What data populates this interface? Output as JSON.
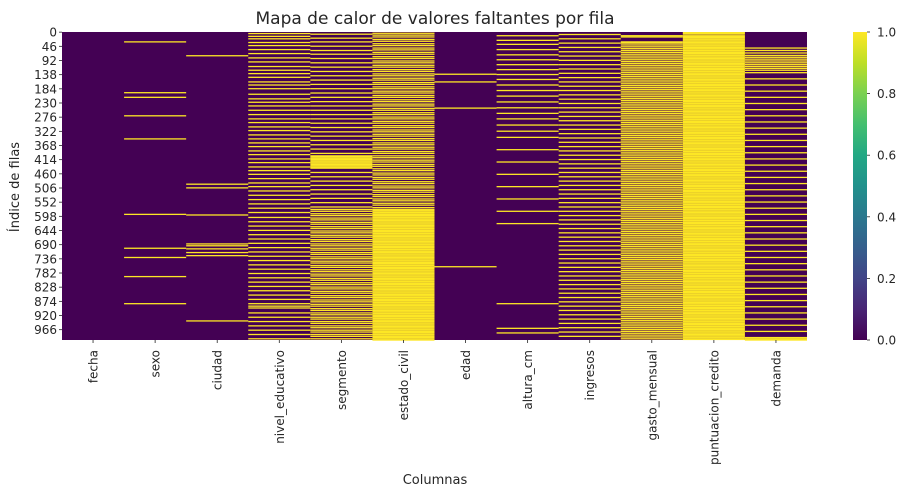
{
  "chart_data": {
    "type": "heatmap",
    "title": "Mapa de calor de valores faltantes por fila",
    "xlabel": "Columnas",
    "ylabel": "Índice de filas",
    "columns": [
      "fecha",
      "sexo",
      "ciudad",
      "nivel_educativo",
      "segmento",
      "estado_civil",
      "edad",
      "altura_cm",
      "ingresos",
      "gasto_mensual",
      "puntuacion_credito",
      "demanda"
    ],
    "row_tick_labels": [
      "0",
      "46",
      "92",
      "138",
      "184",
      "230",
      "276",
      "322",
      "368",
      "414",
      "460",
      "506",
      "552",
      "598",
      "644",
      "690",
      "736",
      "782",
      "828",
      "874",
      "920",
      "966"
    ],
    "n_rows": 1000,
    "values_description": "1 = missing value, 0 = present",
    "missing_rows": {
      "fecha": [],
      "sexo": [
        30,
        195,
        210,
        270,
        345,
        590,
        700,
        730,
        792,
        880
      ],
      "ciudad": [
        75,
        492,
        504,
        592,
        686,
        692,
        702,
        714,
        724,
        936
      ],
      "nivel_educativo": [
        3,
        12,
        20,
        32,
        42,
        55,
        68,
        82,
        95,
        110,
        122,
        133,
        145,
        160,
        170,
        182,
        200,
        215,
        226,
        238,
        252,
        266,
        280,
        292,
        306,
        318,
        332,
        345,
        358,
        370,
        384,
        396,
        410,
        422,
        436,
        448,
        460,
        474,
        488,
        500,
        514,
        528,
        542,
        556,
        570,
        584,
        600,
        614,
        628,
        642,
        656,
        670,
        684,
        698,
        712,
        726,
        740,
        754,
        768,
        782,
        796,
        810,
        824,
        838,
        852,
        866,
        880,
        888,
        894,
        910,
        924,
        938,
        952,
        966,
        980,
        994
      ],
      "segmento": [
        5,
        18,
        30,
        44,
        58,
        70,
        84,
        98,
        112,
        126,
        140,
        154,
        168,
        182,
        196,
        210,
        224,
        238,
        252,
        266,
        280,
        294,
        308,
        322,
        336,
        350,
        364,
        378,
        392,
        400,
        404,
        408,
        412,
        416,
        420,
        424,
        428,
        432,
        436,
        440,
        454,
        468,
        482,
        496,
        510,
        524,
        538,
        552,
        566,
        574,
        580,
        588,
        594,
        602,
        608,
        616,
        622,
        630,
        636,
        644,
        650,
        658,
        664,
        672,
        678,
        686,
        692,
        700,
        706,
        714,
        720,
        728,
        734,
        742,
        748,
        756,
        762,
        770,
        776,
        784,
        790,
        798,
        804,
        812,
        818,
        826,
        832,
        840,
        846,
        854,
        860,
        868,
        874,
        882,
        888,
        896,
        902,
        910,
        916,
        924,
        930,
        938,
        944,
        952,
        958,
        966,
        972,
        980,
        986,
        994
      ],
      "estado_civil": [
        2,
        8,
        14,
        22,
        28,
        36,
        42,
        50,
        56,
        64,
        70,
        78,
        84,
        92,
        98,
        106,
        112,
        120,
        126,
        134,
        140,
        148,
        154,
        162,
        168,
        176,
        182,
        190,
        196,
        204,
        210,
        218,
        224,
        232,
        238,
        246,
        252,
        260,
        266,
        274,
        280,
        288,
        294,
        302,
        308,
        316,
        322,
        330,
        336,
        344,
        350,
        358,
        364,
        372,
        378,
        386,
        392,
        400,
        406,
        414,
        420,
        428,
        434,
        442,
        448,
        456,
        462,
        470,
        476,
        484,
        490,
        498,
        504,
        512,
        518,
        526,
        532,
        540,
        546,
        554,
        560,
        568,
        574,
        578,
        582,
        586,
        590,
        594,
        598,
        602,
        606,
        610,
        614,
        618,
        622,
        626,
        630,
        634,
        638,
        642,
        646,
        650,
        654,
        658,
        662,
        666,
        670,
        674,
        678,
        682,
        686,
        690,
        694,
        698,
        702,
        706,
        710,
        714,
        718,
        722,
        726,
        730,
        734,
        738,
        742,
        746,
        750,
        754,
        758,
        762,
        766,
        770,
        774,
        778,
        782,
        786,
        790,
        794,
        798,
        802,
        806,
        810,
        814,
        818,
        822,
        826,
        830,
        834,
        838,
        842,
        846,
        850,
        854,
        858,
        862,
        866,
        870,
        874,
        878,
        882,
        886,
        890,
        894,
        898,
        902,
        906,
        910,
        914,
        918,
        922,
        926,
        930,
        934,
        938,
        942,
        946,
        950,
        954,
        958,
        962,
        966,
        970,
        974,
        978,
        982,
        986,
        990,
        994,
        998
      ],
      "edad": [
        135,
        160,
        245,
        760
      ],
      "altura_cm": [
        10,
        25,
        38,
        55,
        72,
        88,
        104,
        120,
        136,
        152,
        170,
        188,
        206,
        225,
        244,
        262,
        280,
        300,
        320,
        340,
        380,
        420,
        460,
        500,
        540,
        580,
        620,
        880,
        960,
        975
      ],
      "ingresos": [
        6,
        20,
        34,
        48,
        62,
        76,
        90,
        104,
        118,
        132,
        146,
        160,
        174,
        188,
        202,
        216,
        230,
        244,
        258,
        272,
        286,
        300,
        314,
        328,
        342,
        356,
        370,
        384,
        398,
        412,
        426,
        440,
        454,
        468,
        482,
        496,
        510,
        524,
        538,
        552,
        566,
        580,
        594,
        608,
        622,
        636,
        650,
        664,
        678,
        692,
        706,
        720,
        734,
        748,
        762,
        776,
        790,
        804,
        818,
        832,
        846,
        860,
        874,
        888,
        902,
        916,
        930,
        944,
        958,
        972,
        986
      ],
      "gasto_mensual": [
        10,
        14,
        30,
        34,
        40,
        46,
        52,
        58,
        64,
        70,
        76,
        82,
        88,
        94,
        100,
        106,
        112,
        118,
        124,
        130,
        136,
        142,
        148,
        154,
        160,
        166,
        172,
        178,
        184,
        190,
        196,
        202,
        208,
        214,
        220,
        226,
        232,
        238,
        244,
        250,
        256,
        262,
        268,
        274,
        280,
        286,
        292,
        298,
        304,
        310,
        316,
        322,
        328,
        334,
        340,
        346,
        352,
        358,
        364,
        370,
        376,
        382,
        388,
        394,
        400,
        406,
        412,
        418,
        424,
        430,
        436,
        442,
        448,
        454,
        460,
        466,
        472,
        478,
        484,
        490,
        496,
        502,
        508,
        514,
        520,
        526,
        532,
        538,
        544,
        550,
        556,
        562,
        568,
        574,
        580,
        586,
        592,
        598,
        604,
        610,
        616,
        622,
        628,
        634,
        640,
        646,
        652,
        658,
        664,
        670,
        676,
        682,
        688,
        694,
        700,
        706,
        712,
        718,
        724,
        730,
        736,
        742,
        748,
        754,
        760,
        766,
        772,
        778,
        784,
        790,
        796,
        802,
        808,
        814,
        820,
        826,
        832,
        838,
        844,
        850,
        856,
        862,
        868,
        874,
        880,
        886,
        892,
        898,
        904,
        910,
        916,
        922,
        928,
        934,
        940,
        946,
        952,
        958,
        964,
        970,
        976,
        982,
        988,
        994
      ],
      "puntuacion_credito": [
        0,
        3,
        8,
        12,
        16,
        20,
        24,
        28,
        32,
        36,
        40,
        44,
        48,
        52,
        56,
        60,
        64,
        68,
        72,
        76,
        80,
        84,
        88,
        92,
        96,
        100,
        104,
        108,
        112,
        116,
        120,
        124,
        128,
        132,
        136,
        140,
        144,
        148,
        152,
        156,
        160,
        164,
        168,
        172,
        176,
        180,
        184,
        188,
        192,
        196,
        200,
        204,
        208,
        212,
        216,
        220,
        224,
        228,
        232,
        236,
        240,
        244,
        248,
        252,
        256,
        260,
        264,
        268,
        272,
        276,
        280,
        284,
        288,
        292,
        296,
        300,
        304,
        308,
        312,
        316,
        320,
        324,
        328,
        332,
        336,
        340,
        344,
        348,
        352,
        356,
        360,
        364,
        368,
        372,
        376,
        380,
        384,
        388,
        392,
        396,
        400,
        404,
        408,
        412,
        416,
        420,
        424,
        428,
        432,
        436,
        440,
        444,
        448,
        452,
        456,
        460,
        464,
        468,
        472,
        476,
        480,
        484,
        488,
        492,
        496,
        500,
        504,
        508,
        512,
        516,
        520,
        524,
        528,
        532,
        536,
        540,
        544,
        548,
        552,
        556,
        560,
        564,
        568,
        572,
        576,
        580,
        584,
        588,
        592,
        596,
        600,
        604,
        608,
        612,
        616,
        620,
        624,
        628,
        632,
        636,
        640,
        644,
        648,
        652,
        656,
        660,
        664,
        668,
        672,
        676,
        680,
        684,
        688,
        692,
        696,
        700,
        704,
        708,
        712,
        716,
        720,
        724,
        728,
        732,
        736,
        740,
        744,
        748,
        752,
        756,
        760,
        764,
        768,
        772,
        776,
        780,
        784,
        788,
        792,
        796,
        800,
        804,
        808,
        812,
        816,
        820,
        824,
        828,
        832,
        836,
        840,
        844,
        848,
        852,
        856,
        860,
        864,
        868,
        872,
        876,
        880,
        884,
        888,
        892,
        896,
        900,
        904,
        908,
        912,
        916,
        920,
        924,
        928,
        932,
        936,
        940,
        944,
        948,
        952,
        956,
        960,
        964,
        968,
        972,
        976,
        980,
        984,
        988,
        992,
        996
      ],
      "demanda": [
        50,
        58,
        66,
        74,
        80,
        86,
        92,
        98,
        104,
        110,
        116,
        122,
        130,
        150,
        170,
        190,
        210,
        230,
        250,
        270,
        290,
        310,
        330,
        350,
        370,
        390,
        410,
        430,
        450,
        470,
        490,
        510,
        530,
        550,
        570,
        590,
        610,
        630,
        650,
        670,
        690,
        710,
        730,
        750,
        770,
        790,
        810,
        830,
        850,
        870,
        890,
        910,
        930,
        950,
        970,
        990,
        994,
        998
      ]
    },
    "colorbar": {
      "colormap": "viridis",
      "min": 0,
      "max": 1,
      "ticks": [
        "0.0",
        "0.2",
        "0.4",
        "0.6",
        "0.8",
        "1.0"
      ],
      "low_color": "#440154",
      "high_color": "#fde725"
    },
    "legend": "none",
    "grid": false
  }
}
